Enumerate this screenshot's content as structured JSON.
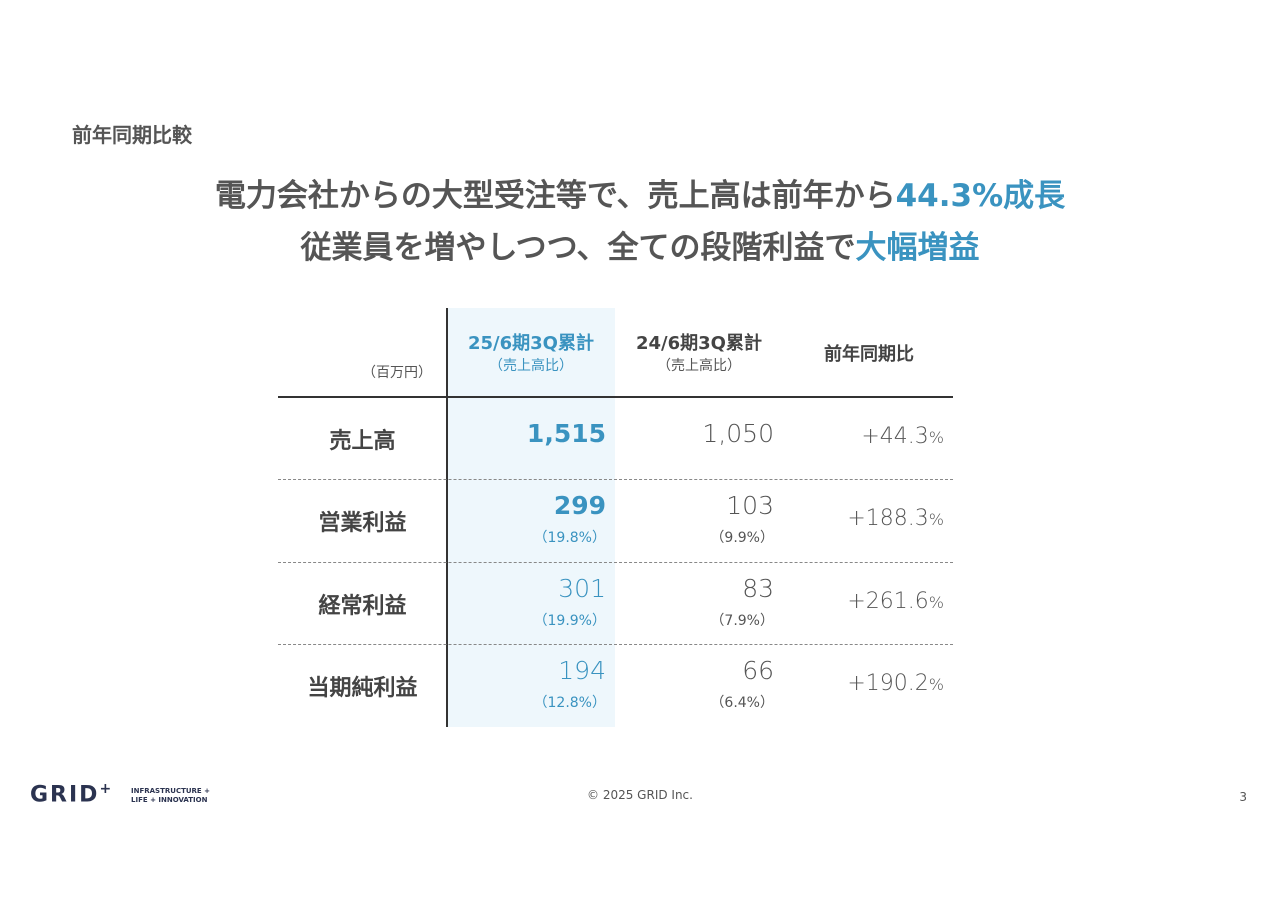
{
  "header": {
    "section": "前年同期比較"
  },
  "headline": {
    "line1": {
      "text": "電力会社からの大型受注等で、売上高は前年から",
      "highlight": "44.3%成長"
    },
    "line2": {
      "text": "従業員を増やしつつ、全ての段階利益で",
      "highlight": "大幅増益"
    }
  },
  "table": {
    "unit": "（百万円）",
    "columns": [
      {
        "title": "25/6期3Q累計",
        "sub": "（売上高比）"
      },
      {
        "title": "24/6期3Q累計",
        "sub": "（売上高比）"
      },
      {
        "title": "前年同期比"
      }
    ],
    "rows": [
      {
        "label": "売上高",
        "current": "1,515",
        "previous": "1,050",
        "change": "+44.3",
        "change_unit": "%"
      },
      {
        "label": "営業利益",
        "current": "299",
        "current_ratio": "（19.8%）",
        "previous": "103",
        "previous_ratio": "（9.9%）",
        "change": "+188.3",
        "change_unit": "%"
      },
      {
        "label": "経常利益",
        "current": "301",
        "current_ratio": "（19.9%）",
        "previous": "83",
        "previous_ratio": "（7.9%）",
        "change": "+261.6",
        "change_unit": "%"
      },
      {
        "label": "当期純利益",
        "current": "194",
        "current_ratio": "（12.8%）",
        "previous": "66",
        "previous_ratio": "（6.4%）",
        "change": "+190.2",
        "change_unit": "%"
      }
    ]
  },
  "footer": {
    "logo": "GRID",
    "logo_plus": "+",
    "tagline1": "INFRASTRUCTURE +",
    "tagline2": "LIFE + INNOVATION",
    "copyright": "© 2025 GRID Inc.",
    "page": "3"
  }
}
